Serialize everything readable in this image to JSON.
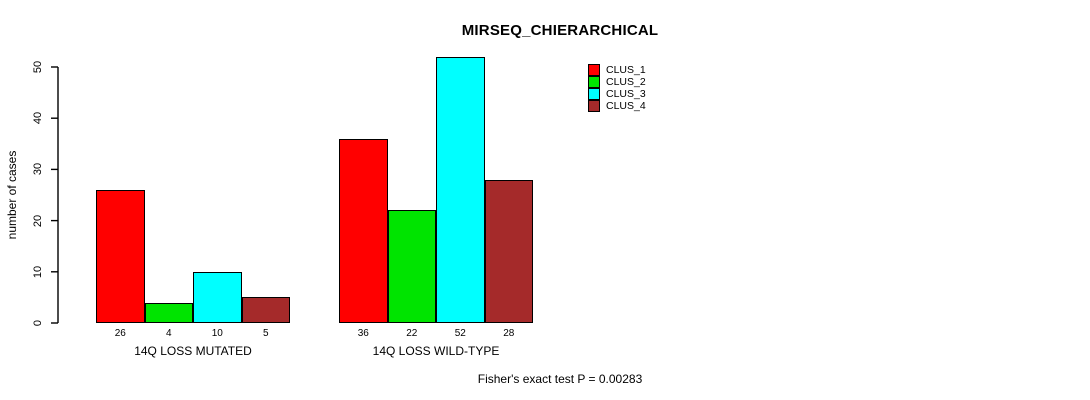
{
  "title": "MIRSEQ_CHIERARCHICAL",
  "y_axis": {
    "label": "number of cases",
    "ticks": [
      0,
      10,
      20,
      30,
      40,
      50
    ]
  },
  "annotation": "Fisher's exact test P = 0.00283",
  "chart_data": {
    "type": "bar",
    "title": "MIRSEQ_CHIERARCHICAL",
    "categories": [
      "14Q LOSS MUTATED",
      "14Q LOSS WILD-TYPE"
    ],
    "series": [
      {
        "name": "CLUS_1",
        "color": "#FF0000",
        "values": [
          26,
          36
        ]
      },
      {
        "name": "CLUS_2",
        "color": "#00E400",
        "values": [
          4,
          22
        ]
      },
      {
        "name": "CLUS_3",
        "color": "#00FFFF",
        "values": [
          10,
          52
        ]
      },
      {
        "name": "CLUS_4",
        "color": "#A52A2A",
        "values": [
          5,
          28
        ]
      }
    ],
    "xlabel": "",
    "ylabel": "number of cases",
    "ylim": [
      0,
      50
    ],
    "bar_value_labels": true,
    "legend_entries": [
      "CLUS_1",
      "CLUS_2",
      "CLUS_3",
      "CLUS_4"
    ],
    "legend_position": "top-right",
    "grid": false,
    "annotation": "Fisher's exact test P = 0.00283"
  }
}
